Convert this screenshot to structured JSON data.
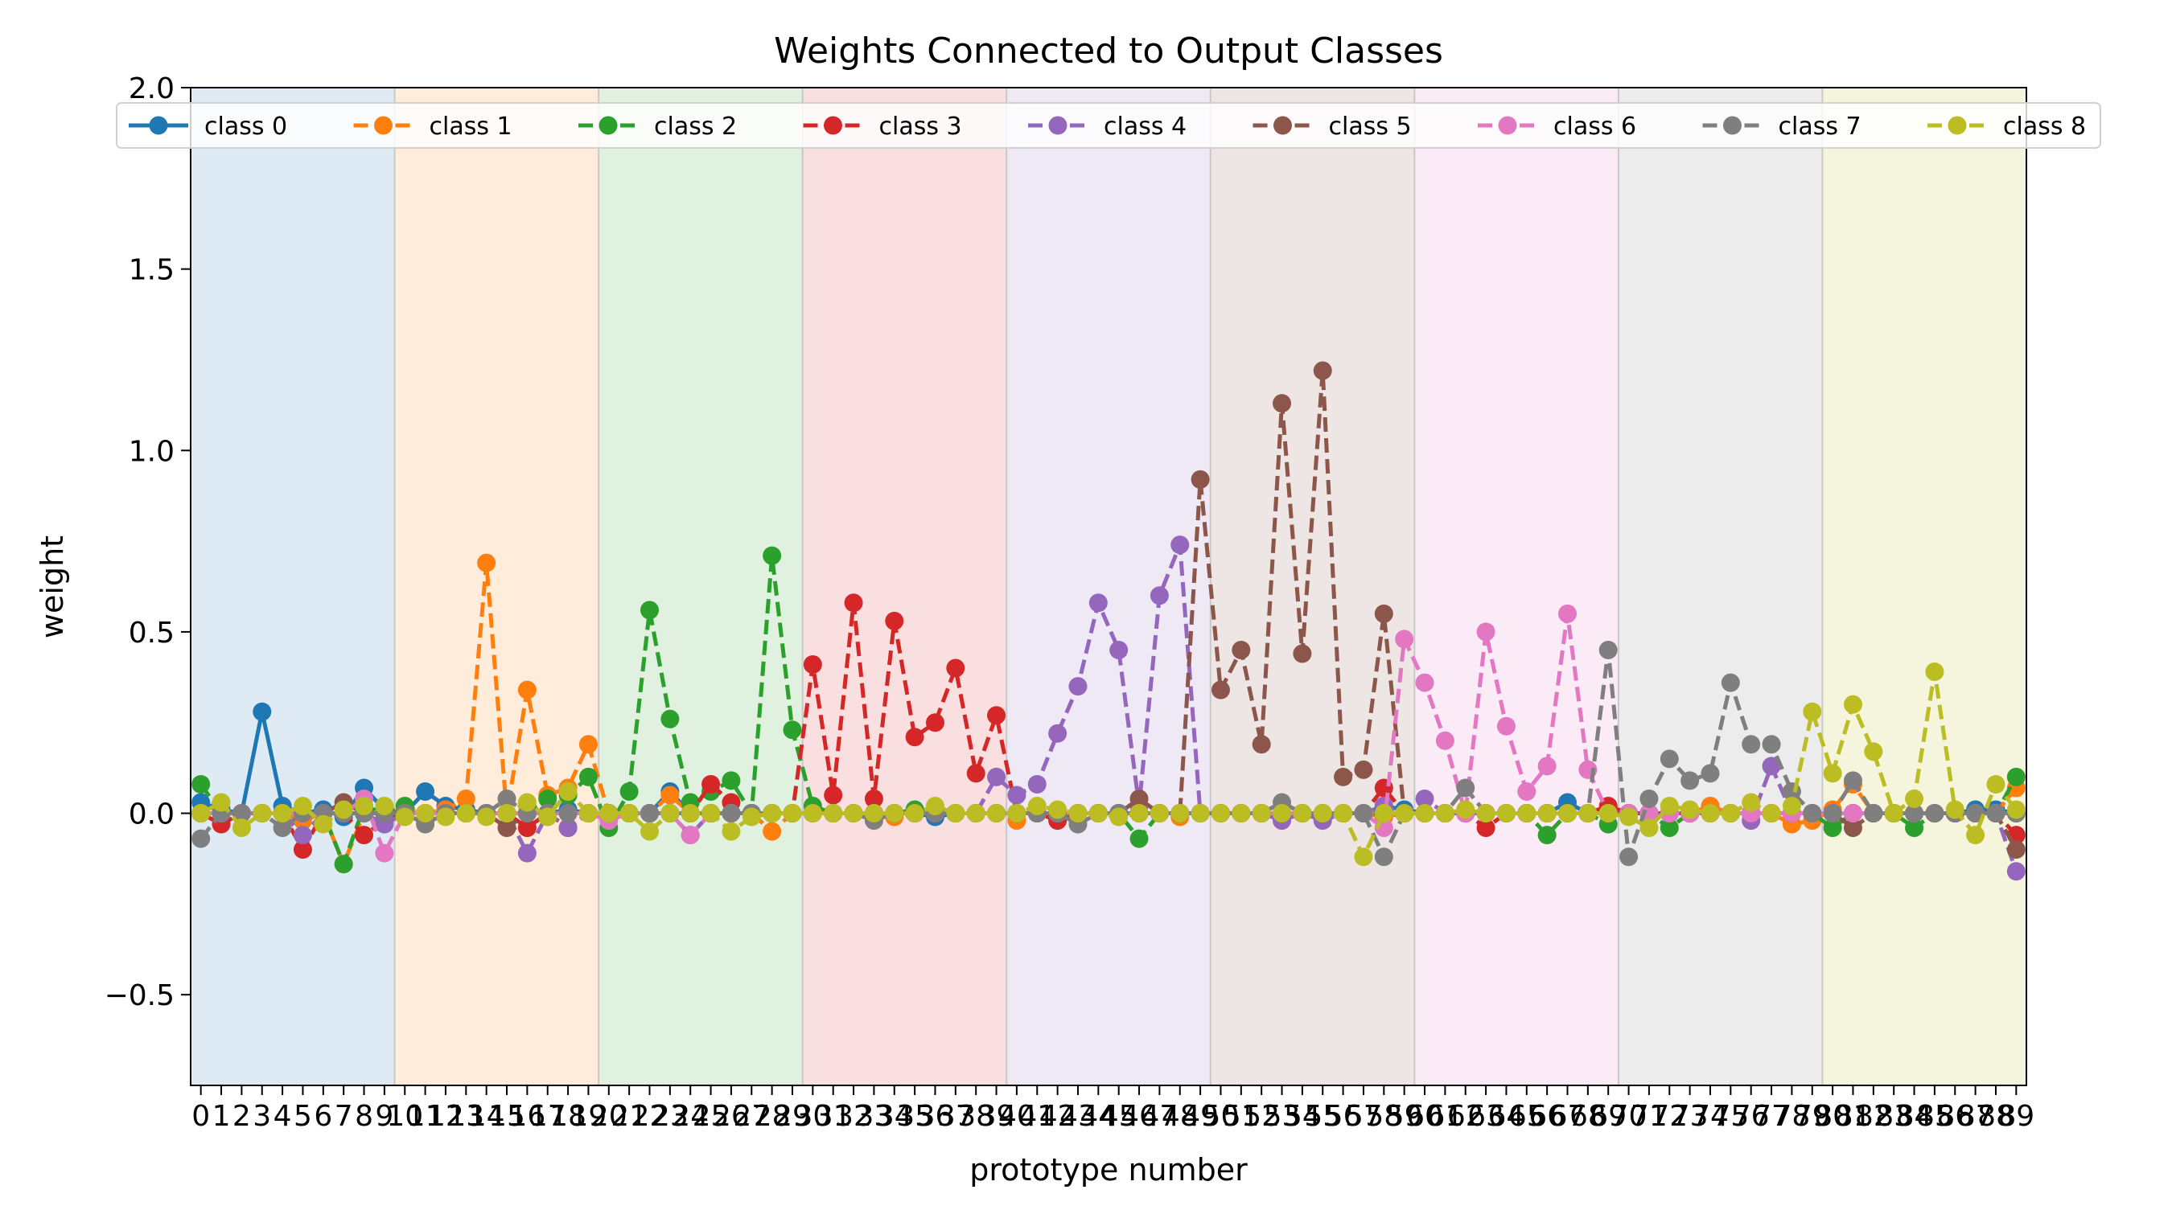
{
  "chart_data": {
    "type": "line",
    "title": "Weights Connected to Output Classes",
    "xlabel": "prototype number",
    "ylabel": "weight",
    "xlim": [
      -0.5,
      89.5
    ],
    "ylim": [
      -0.75,
      2.0
    ],
    "yticks": [
      "2.0",
      "1.5",
      "1.0",
      "0.5",
      "0.0",
      "−0.5"
    ],
    "ytick_values": [
      2.0,
      1.5,
      1.0,
      0.5,
      0.0,
      -0.5
    ],
    "x": [
      0,
      1,
      2,
      3,
      4,
      5,
      6,
      7,
      8,
      9,
      10,
      11,
      12,
      13,
      14,
      15,
      16,
      17,
      18,
      19,
      20,
      21,
      22,
      23,
      24,
      25,
      26,
      27,
      28,
      29,
      30,
      31,
      32,
      33,
      34,
      35,
      36,
      37,
      38,
      39,
      40,
      41,
      42,
      43,
      44,
      45,
      46,
      47,
      48,
      49,
      50,
      51,
      52,
      53,
      54,
      55,
      56,
      57,
      58,
      59,
      60,
      61,
      62,
      63,
      64,
      65,
      66,
      67,
      68,
      69,
      70,
      71,
      72,
      73,
      74,
      75,
      76,
      77,
      78,
      79,
      80,
      81,
      82,
      83,
      84,
      85,
      86,
      87,
      88,
      89
    ],
    "xtick_labels": [
      "0",
      "1",
      "2",
      "3",
      "4",
      "5",
      "6",
      "7",
      "8",
      "9",
      "10",
      "11",
      "12",
      "13",
      "14",
      "15",
      "16",
      "17",
      "18",
      "19",
      "20",
      "21",
      "22",
      "23",
      "24",
      "25",
      "26",
      "27",
      "28",
      "29",
      "30",
      "31",
      "32",
      "33",
      "34",
      "35",
      "36",
      "37",
      "38",
      "39",
      "40",
      "41",
      "42",
      "43",
      "44",
      "45",
      "46",
      "47",
      "48",
      "49",
      "50",
      "51",
      "52",
      "53",
      "54",
      "55",
      "56",
      "57",
      "58",
      "59",
      "60",
      "61",
      "62",
      "63",
      "64",
      "65",
      "66",
      "67",
      "68",
      "69",
      "70",
      "71",
      "72",
      "73",
      "74",
      "75",
      "76",
      "77",
      "78",
      "79",
      "80",
      "81",
      "82",
      "83",
      "84",
      "85",
      "86",
      "87",
      "88",
      "89"
    ],
    "grid": false,
    "legend_position": "top",
    "background_bands": [
      {
        "x_start": -0.5,
        "x_end": 9.5,
        "color": "#1f77b4"
      },
      {
        "x_start": 9.5,
        "x_end": 19.5,
        "color": "#ff7f0e"
      },
      {
        "x_start": 19.5,
        "x_end": 29.5,
        "color": "#2ca02c"
      },
      {
        "x_start": 29.5,
        "x_end": 39.5,
        "color": "#d62728"
      },
      {
        "x_start": 39.5,
        "x_end": 49.5,
        "color": "#9467bd"
      },
      {
        "x_start": 49.5,
        "x_end": 59.5,
        "color": "#8c564b"
      },
      {
        "x_start": 59.5,
        "x_end": 69.5,
        "color": "#e377c2"
      },
      {
        "x_start": 69.5,
        "x_end": 79.5,
        "color": "#7f7f7f"
      },
      {
        "x_start": 79.5,
        "x_end": 89.5,
        "color": "#bcbd22"
      }
    ],
    "series": [
      {
        "name": "class 0",
        "color": "#1f77b4",
        "linestyle": "solid",
        "values": [
          0.03,
          0.01,
          0.0,
          0.28,
          0.02,
          0.0,
          0.01,
          -0.01,
          0.07,
          0.01,
          0.0,
          0.06,
          0.02,
          0.01,
          0.0,
          0.0,
          0.0,
          0.0,
          0.01,
          0.0,
          0.0,
          0.0,
          0.0,
          0.06,
          0.0,
          0.0,
          0.0,
          0.0,
          0.0,
          0.0,
          0.0,
          0.0,
          0.0,
          0.0,
          0.0,
          0.0,
          -0.01,
          0.0,
          0.0,
          0.0,
          0.0,
          0.0,
          0.0,
          0.0,
          0.0,
          0.0,
          0.0,
          0.0,
          0.0,
          0.0,
          0.0,
          0.0,
          0.0,
          0.0,
          0.0,
          0.0,
          0.0,
          0.0,
          0.02,
          0.01,
          0.0,
          0.0,
          0.0,
          0.0,
          0.0,
          0.0,
          0.0,
          0.03,
          0.0,
          0.0,
          0.0,
          0.0,
          0.0,
          0.0,
          0.0,
          0.0,
          0.0,
          0.0,
          0.0,
          0.0,
          0.0,
          0.0,
          0.0,
          0.0,
          0.0,
          0.0,
          0.0,
          0.01,
          0.01,
          0.0
        ]
      },
      {
        "name": "class 1",
        "color": "#ff7f0e",
        "linestyle": "dashed",
        "values": [
          0.0,
          0.0,
          0.0,
          0.0,
          0.0,
          -0.02,
          0.0,
          -0.14,
          0.0,
          0.0,
          0.01,
          0.0,
          0.01,
          0.04,
          0.69,
          0.0,
          0.34,
          0.05,
          0.07,
          0.19,
          0.0,
          0.0,
          0.0,
          0.05,
          0.0,
          0.0,
          0.0,
          0.0,
          -0.05,
          0.0,
          0.0,
          0.0,
          0.0,
          0.0,
          -0.01,
          0.0,
          0.0,
          0.0,
          0.0,
          0.0,
          -0.02,
          0.0,
          0.0,
          0.0,
          0.0,
          0.0,
          0.0,
          0.0,
          -0.01,
          0.0,
          0.0,
          0.0,
          0.0,
          0.0,
          0.0,
          0.0,
          0.0,
          0.0,
          -0.01,
          0.0,
          0.0,
          0.0,
          0.0,
          0.0,
          0.0,
          0.0,
          0.0,
          0.0,
          0.0,
          0.0,
          0.0,
          0.0,
          0.0,
          0.0,
          0.02,
          0.0,
          0.0,
          0.0,
          -0.03,
          -0.02,
          0.01,
          0.08,
          0.0,
          0.0,
          0.0,
          0.0,
          0.0,
          0.0,
          0.0,
          0.07
        ]
      },
      {
        "name": "class 2",
        "color": "#2ca02c",
        "linestyle": "dashed",
        "values": [
          0.08,
          0.0,
          0.0,
          0.0,
          0.0,
          0.0,
          0.0,
          -0.14,
          0.02,
          0.0,
          0.02,
          0.0,
          0.0,
          0.0,
          0.0,
          0.0,
          0.0,
          0.04,
          0.05,
          0.1,
          -0.04,
          0.06,
          0.56,
          0.26,
          0.03,
          0.06,
          0.09,
          0.0,
          0.71,
          0.23,
          0.02,
          0.0,
          0.0,
          0.0,
          0.0,
          0.01,
          0.01,
          0.0,
          0.0,
          0.0,
          0.0,
          0.0,
          0.0,
          0.0,
          0.0,
          0.0,
          -0.07,
          0.0,
          0.0,
          0.0,
          0.0,
          0.0,
          0.0,
          0.0,
          0.0,
          0.0,
          0.0,
          0.0,
          0.0,
          0.0,
          0.0,
          0.0,
          0.0,
          0.0,
          0.0,
          0.0,
          -0.06,
          0.0,
          0.0,
          -0.03,
          0.0,
          0.0,
          -0.04,
          0.0,
          0.0,
          0.0,
          0.0,
          0.0,
          0.0,
          0.0,
          -0.04,
          0.0,
          0.0,
          0.0,
          -0.04,
          0.0,
          0.0,
          0.0,
          0.0,
          0.1
        ]
      },
      {
        "name": "class 3",
        "color": "#d62728",
        "linestyle": "dashed",
        "values": [
          0.0,
          -0.03,
          0.0,
          0.0,
          0.0,
          -0.1,
          0.0,
          0.0,
          -0.06,
          -0.02,
          0.0,
          0.0,
          0.0,
          0.0,
          0.0,
          0.0,
          -0.04,
          0.0,
          -0.04,
          0.0,
          0.0,
          0.0,
          0.0,
          0.0,
          0.0,
          0.08,
          0.03,
          0.0,
          0.0,
          0.0,
          0.41,
          0.05,
          0.58,
          0.04,
          0.53,
          0.21,
          0.25,
          0.4,
          0.11,
          0.27,
          0.0,
          0.0,
          -0.02,
          0.0,
          0.0,
          0.0,
          0.0,
          0.0,
          0.0,
          0.0,
          0.0,
          0.0,
          0.0,
          0.0,
          0.0,
          0.0,
          0.0,
          0.0,
          0.07,
          0.0,
          0.0,
          0.0,
          0.0,
          -0.04,
          0.0,
          0.0,
          0.0,
          0.0,
          0.0,
          0.02,
          0.0,
          0.0,
          0.0,
          0.0,
          0.0,
          0.0,
          0.0,
          0.0,
          0.0,
          0.0,
          0.0,
          0.0,
          0.0,
          0.0,
          0.0,
          0.0,
          0.0,
          0.0,
          0.0,
          -0.06
        ]
      },
      {
        "name": "class 4",
        "color": "#9467bd",
        "linestyle": "dashed",
        "values": [
          0.0,
          0.0,
          0.0,
          0.0,
          0.0,
          -0.06,
          0.0,
          0.0,
          0.0,
          -0.03,
          0.0,
          0.0,
          0.0,
          0.0,
          0.0,
          0.0,
          -0.11,
          0.0,
          -0.04,
          0.0,
          0.0,
          0.0,
          0.0,
          0.0,
          -0.06,
          0.0,
          0.0,
          0.0,
          0.0,
          0.0,
          0.0,
          0.0,
          0.0,
          0.0,
          0.0,
          0.0,
          0.0,
          0.0,
          0.0,
          0.1,
          0.05,
          0.08,
          0.22,
          0.35,
          0.58,
          0.45,
          0.02,
          0.6,
          0.74,
          0.0,
          0.0,
          0.0,
          0.0,
          -0.02,
          0.0,
          -0.02,
          0.0,
          0.0,
          0.02,
          0.0,
          0.04,
          0.0,
          0.0,
          0.0,
          0.0,
          0.0,
          0.0,
          0.0,
          0.0,
          0.0,
          0.0,
          0.0,
          0.0,
          0.0,
          0.0,
          0.0,
          -0.02,
          0.13,
          0.0,
          0.0,
          0.0,
          0.0,
          0.0,
          0.0,
          0.0,
          0.0,
          0.0,
          0.0,
          0.0,
          -0.16
        ]
      },
      {
        "name": "class 5",
        "color": "#8c564b",
        "linestyle": "dashed",
        "values": [
          0.0,
          0.0,
          0.0,
          0.0,
          0.0,
          0.0,
          0.0,
          0.03,
          0.0,
          0.0,
          0.0,
          0.0,
          0.0,
          0.0,
          0.0,
          -0.04,
          0.0,
          0.0,
          0.0,
          0.0,
          0.0,
          0.0,
          0.0,
          0.0,
          0.0,
          0.0,
          0.0,
          0.0,
          0.0,
          0.0,
          0.0,
          0.0,
          0.0,
          0.0,
          0.0,
          0.0,
          0.0,
          0.0,
          0.0,
          0.0,
          0.0,
          0.0,
          0.0,
          0.0,
          0.0,
          0.0,
          0.04,
          0.0,
          0.0,
          0.92,
          0.34,
          0.45,
          0.19,
          1.13,
          0.44,
          1.22,
          0.1,
          0.12,
          0.55,
          0.0,
          0.0,
          0.0,
          0.0,
          0.0,
          0.0,
          0.0,
          0.0,
          0.0,
          0.0,
          0.0,
          0.0,
          0.0,
          0.0,
          0.0,
          0.0,
          0.0,
          0.0,
          0.0,
          0.0,
          0.0,
          0.0,
          -0.04,
          0.0,
          0.0,
          0.0,
          0.0,
          0.0,
          0.0,
          0.0,
          -0.1
        ]
      },
      {
        "name": "class 6",
        "color": "#e377c2",
        "linestyle": "dashed",
        "values": [
          0.0,
          0.0,
          0.0,
          0.0,
          0.0,
          0.0,
          0.0,
          0.0,
          0.04,
          -0.11,
          0.0,
          0.0,
          0.0,
          0.0,
          0.0,
          0.0,
          0.0,
          0.0,
          0.0,
          0.0,
          -0.02,
          0.0,
          0.0,
          0.0,
          -0.06,
          0.0,
          0.0,
          0.0,
          0.0,
          0.0,
          0.0,
          0.0,
          0.0,
          0.0,
          0.0,
          0.0,
          0.0,
          0.0,
          0.0,
          0.0,
          0.0,
          0.0,
          0.0,
          0.0,
          0.0,
          0.0,
          0.0,
          0.0,
          0.0,
          0.0,
          0.0,
          0.0,
          0.0,
          0.0,
          0.0,
          0.0,
          0.0,
          0.0,
          -0.04,
          0.48,
          0.36,
          0.2,
          0.0,
          0.5,
          0.24,
          0.06,
          0.13,
          0.55,
          0.12,
          0.0,
          0.0,
          0.0,
          0.0,
          0.0,
          0.0,
          0.0,
          0.0,
          0.0,
          0.0,
          0.0,
          0.0,
          0.0,
          0.0,
          0.0,
          0.0,
          0.0,
          0.0,
          0.0,
          0.0,
          0.0
        ]
      },
      {
        "name": "class 7",
        "color": "#7f7f7f",
        "linestyle": "dashed",
        "values": [
          -0.07,
          0.0,
          0.0,
          0.0,
          -0.04,
          0.0,
          0.0,
          0.0,
          0.0,
          0.0,
          0.0,
          -0.03,
          0.0,
          0.0,
          0.0,
          0.04,
          0.0,
          0.0,
          0.0,
          0.0,
          0.0,
          0.0,
          0.0,
          0.0,
          0.0,
          0.0,
          0.0,
          0.0,
          0.0,
          0.0,
          0.0,
          0.0,
          0.0,
          -0.02,
          0.0,
          0.0,
          0.0,
          0.0,
          0.0,
          0.0,
          0.0,
          0.0,
          0.0,
          -0.03,
          0.0,
          0.0,
          0.0,
          0.0,
          0.0,
          0.0,
          0.0,
          0.0,
          0.0,
          0.03,
          0.0,
          0.0,
          0.0,
          0.0,
          -0.12,
          0.0,
          0.0,
          0.0,
          0.07,
          0.0,
          0.0,
          0.0,
          0.0,
          0.0,
          0.0,
          0.45,
          -0.12,
          0.04,
          0.15,
          0.09,
          0.11,
          0.36,
          0.19,
          0.19,
          0.06,
          0.0,
          0.0,
          0.09,
          0.0,
          0.0,
          0.0,
          0.0,
          0.0,
          0.0,
          0.0,
          0.0
        ]
      },
      {
        "name": "class 8",
        "color": "#bcbd22",
        "linestyle": "dashed",
        "values": [
          0.0,
          0.03,
          -0.04,
          0.0,
          0.0,
          0.02,
          -0.03,
          0.01,
          0.02,
          0.02,
          -0.01,
          0.0,
          -0.01,
          0.0,
          -0.01,
          0.0,
          0.03,
          -0.01,
          0.06,
          0.0,
          0.0,
          0.0,
          -0.05,
          0.0,
          0.0,
          0.0,
          -0.05,
          -0.01,
          0.0,
          0.0,
          0.0,
          0.0,
          0.0,
          0.0,
          0.0,
          0.0,
          0.02,
          0.0,
          0.0,
          0.0,
          0.0,
          0.02,
          0.01,
          0.0,
          0.0,
          -0.01,
          0.0,
          0.0,
          0.0,
          0.0,
          0.0,
          0.0,
          0.0,
          0.0,
          0.0,
          0.0,
          0.0,
          -0.12,
          0.0,
          0.0,
          0.0,
          0.0,
          0.01,
          0.0,
          0.0,
          0.0,
          0.0,
          0.0,
          0.0,
          0.0,
          -0.01,
          -0.04,
          0.02,
          0.01,
          0.0,
          0.0,
          0.03,
          0.0,
          0.02,
          0.28,
          0.11,
          0.3,
          0.17,
          0.0,
          0.04,
          0.39,
          0.01,
          -0.06,
          0.08,
          0.01
        ]
      }
    ]
  }
}
